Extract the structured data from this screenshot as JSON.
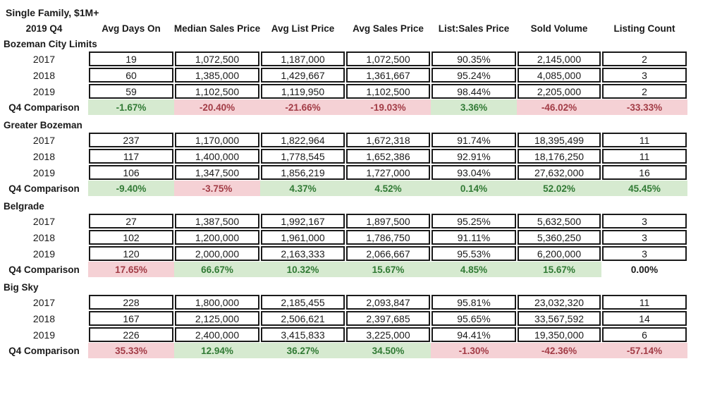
{
  "title": "Single Family, $1M+",
  "subtitle": "2019 Q4",
  "comparison_label": "Q4 Comparison",
  "columns": [
    "Avg Days On",
    "Median Sales Price",
    "Avg List Price",
    "Avg Sales Price",
    "List:Sales Price",
    "Sold Volume",
    "Listing Count"
  ],
  "colors": {
    "positive_fill": "#d6ead0",
    "positive_text": "#317a35",
    "negative_fill": "#f5d1d5",
    "negative_text": "#a23c46",
    "border": "#1a1a1a",
    "text": "#1a1a1a"
  },
  "sections": [
    {
      "name": "Bozeman City Limits",
      "rows": [
        {
          "year": "2017",
          "values": [
            "19",
            "1,072,500",
            "1,187,000",
            "1,072,500",
            "90.35%",
            "2,145,000",
            "2"
          ]
        },
        {
          "year": "2018",
          "values": [
            "60",
            "1,385,000",
            "1,429,667",
            "1,361,667",
            "95.24%",
            "4,085,000",
            "3"
          ]
        },
        {
          "year": "2019",
          "values": [
            "59",
            "1,102,500",
            "1,119,950",
            "1,102,500",
            "98.44%",
            "2,205,000",
            "2"
          ]
        }
      ],
      "comparison": [
        {
          "value": "-1.67%",
          "tone": "green"
        },
        {
          "value": "-20.40%",
          "tone": "red"
        },
        {
          "value": "-21.66%",
          "tone": "red"
        },
        {
          "value": "-19.03%",
          "tone": "red"
        },
        {
          "value": "3.36%",
          "tone": "green"
        },
        {
          "value": "-46.02%",
          "tone": "red"
        },
        {
          "value": "-33.33%",
          "tone": "red"
        }
      ]
    },
    {
      "name": "Greater Bozeman",
      "rows": [
        {
          "year": "2017",
          "values": [
            "237",
            "1,170,000",
            "1,822,964",
            "1,672,318",
            "91.74%",
            "18,395,499",
            "11"
          ]
        },
        {
          "year": "2018",
          "values": [
            "117",
            "1,400,000",
            "1,778,545",
            "1,652,386",
            "92.91%",
            "18,176,250",
            "11"
          ]
        },
        {
          "year": "2019",
          "values": [
            "106",
            "1,347,500",
            "1,856,219",
            "1,727,000",
            "93.04%",
            "27,632,000",
            "16"
          ]
        }
      ],
      "comparison": [
        {
          "value": "-9.40%",
          "tone": "green"
        },
        {
          "value": "-3.75%",
          "tone": "red"
        },
        {
          "value": "4.37%",
          "tone": "green"
        },
        {
          "value": "4.52%",
          "tone": "green"
        },
        {
          "value": "0.14%",
          "tone": "green"
        },
        {
          "value": "52.02%",
          "tone": "green"
        },
        {
          "value": "45.45%",
          "tone": "green"
        }
      ]
    },
    {
      "name": "Belgrade",
      "rows": [
        {
          "year": "2017",
          "values": [
            "27",
            "1,387,500",
            "1,992,167",
            "1,897,500",
            "95.25%",
            "5,632,500",
            "3"
          ]
        },
        {
          "year": "2018",
          "values": [
            "102",
            "1,200,000",
            "1,961,000",
            "1,786,750",
            "91.11%",
            "5,360,250",
            "3"
          ]
        },
        {
          "year": "2019",
          "values": [
            "120",
            "2,000,000",
            "2,163,333",
            "2,066,667",
            "95.53%",
            "6,200,000",
            "3"
          ]
        }
      ],
      "comparison": [
        {
          "value": "17.65%",
          "tone": "red"
        },
        {
          "value": "66.67%",
          "tone": "green"
        },
        {
          "value": "10.32%",
          "tone": "green"
        },
        {
          "value": "15.67%",
          "tone": "green"
        },
        {
          "value": "4.85%",
          "tone": "green"
        },
        {
          "value": "15.67%",
          "tone": "green"
        },
        {
          "value": "0.00%",
          "tone": "neutral"
        }
      ]
    },
    {
      "name": "Big Sky",
      "rows": [
        {
          "year": "2017",
          "values": [
            "228",
            "1,800,000",
            "2,185,455",
            "2,093,847",
            "95.81%",
            "23,032,320",
            "11"
          ]
        },
        {
          "year": "2018",
          "values": [
            "167",
            "2,125,000",
            "2,506,621",
            "2,397,685",
            "95.65%",
            "33,567,592",
            "14"
          ]
        },
        {
          "year": "2019",
          "values": [
            "226",
            "2,400,000",
            "3,415,833",
            "3,225,000",
            "94.41%",
            "19,350,000",
            "6"
          ]
        }
      ],
      "comparison": [
        {
          "value": "35.33%",
          "tone": "red"
        },
        {
          "value": "12.94%",
          "tone": "green"
        },
        {
          "value": "36.27%",
          "tone": "green"
        },
        {
          "value": "34.50%",
          "tone": "green"
        },
        {
          "value": "-1.30%",
          "tone": "red"
        },
        {
          "value": "-42.36%",
          "tone": "red"
        },
        {
          "value": "-57.14%",
          "tone": "red"
        }
      ]
    }
  ]
}
